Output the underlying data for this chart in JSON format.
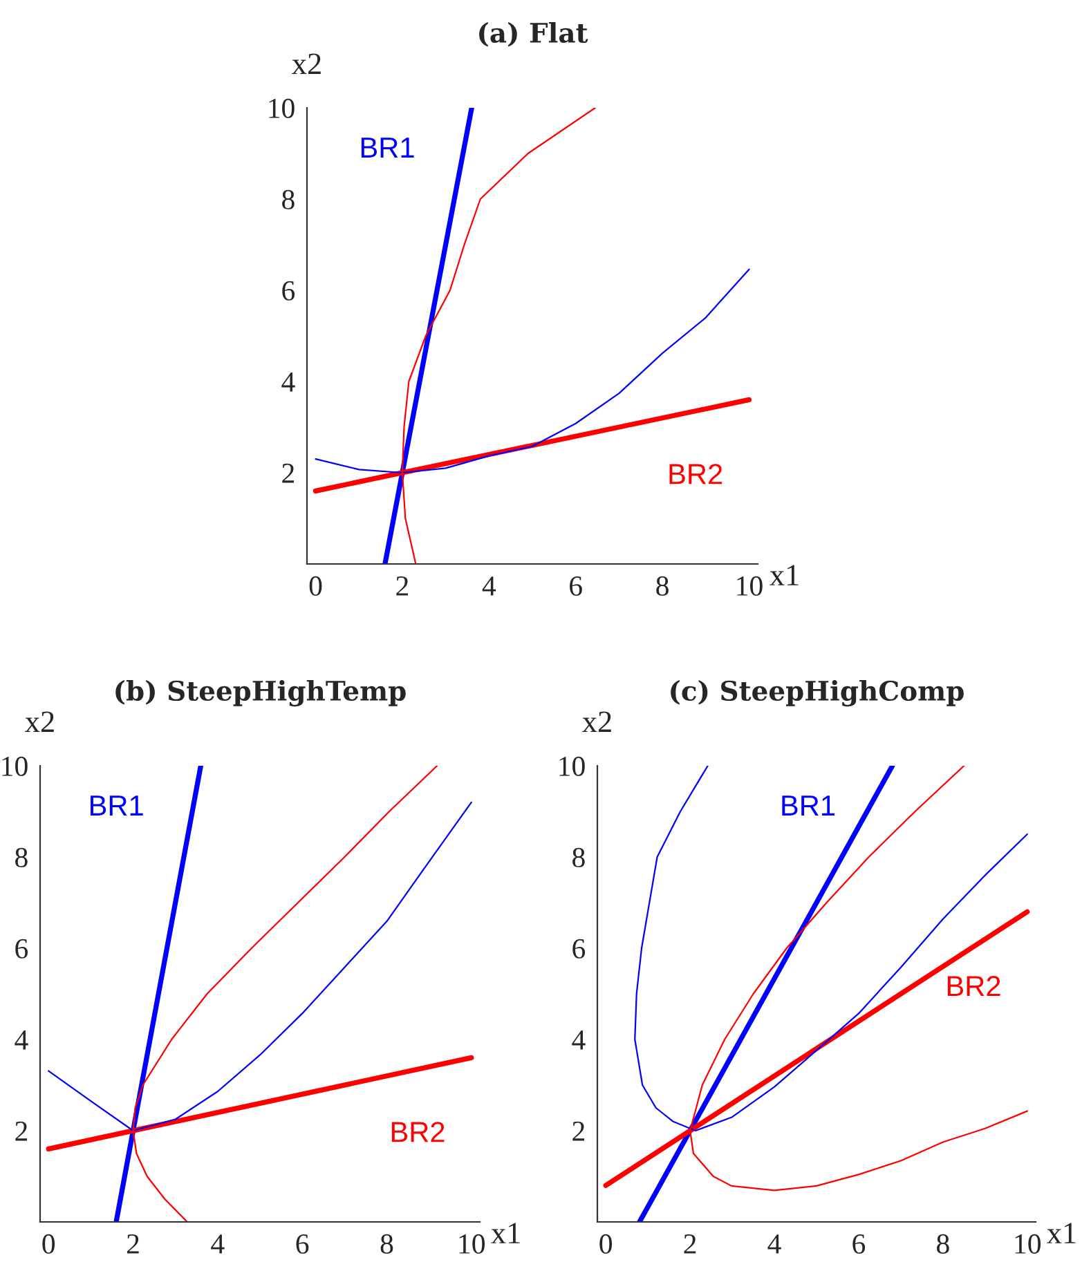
{
  "chart_data": [
    {
      "type": "line",
      "title": "(a) Flat",
      "xlabel": "x1",
      "ylabel": "x2",
      "xlim": [
        -0.2,
        10.2
      ],
      "ylim": [
        0,
        10
      ],
      "xticks": [
        0,
        2,
        4,
        6,
        8,
        10
      ],
      "yticks": [
        2,
        4,
        6,
        8,
        10
      ],
      "series": [
        {
          "name": "BR1",
          "color": "#0000ff",
          "x": [
            1.6,
            3.6
          ],
          "values": [
            0,
            10
          ]
        },
        {
          "name": "BR2",
          "color": "#ff0000",
          "x": [
            0,
            10
          ],
          "values": [
            1.6,
            3.6
          ]
        },
        {
          "color": "#0000ff",
          "x": [
            0,
            1,
            2,
            3,
            4,
            5,
            6,
            7,
            8,
            9,
            10
          ],
          "values": [
            2.3,
            2.07,
            2.0,
            2.1,
            2.37,
            2.58,
            3.08,
            3.74,
            4.62,
            5.4,
            6.46
          ]
        },
        {
          "color": "#ff0000",
          "x": [
            2.31,
            2.07,
            2.0,
            2.04,
            2.15,
            2.54,
            3.1,
            3.43,
            3.8,
            4.9,
            6.45
          ],
          "values": [
            0,
            1,
            2,
            3,
            4,
            5,
            6,
            7,
            8,
            9,
            10
          ]
        }
      ]
    },
    {
      "type": "line",
      "title": "(b) SteepHighTemp",
      "xlabel": "x1",
      "ylabel": "x2",
      "xlim": [
        -0.2,
        10.2
      ],
      "ylim": [
        0,
        10
      ],
      "xticks": [
        0,
        2,
        4,
        6,
        8,
        10
      ],
      "yticks": [
        2,
        4,
        6,
        8,
        10
      ],
      "series": [
        {
          "name": "BR1",
          "color": "#0000ff",
          "x": [
            1.6,
            3.6
          ],
          "values": [
            0,
            10
          ]
        },
        {
          "name": "BR2",
          "color": "#ff0000",
          "x": [
            0,
            10
          ],
          "values": [
            1.6,
            3.6
          ]
        },
        {
          "color": "#0000ff",
          "x": [
            0,
            1,
            2,
            3,
            4,
            5,
            6,
            7,
            8,
            9,
            10
          ],
          "values": [
            3.31,
            2.65,
            2.0,
            2.25,
            2.86,
            3.66,
            4.57,
            5.58,
            6.59,
            7.9,
            9.2
          ]
        },
        {
          "color": "#ff0000",
          "x": [
            3.28,
            2.75,
            2.33,
            2.08,
            2.0,
            2.05,
            2.23,
            2.91,
            3.75,
            4.8,
            5.9,
            7.0,
            8.06,
            9.19
          ],
          "values": [
            0,
            0.5,
            1,
            1.5,
            2,
            2.5,
            3,
            4,
            5,
            6,
            7,
            8,
            9,
            10
          ]
        }
      ]
    },
    {
      "type": "line",
      "title": "(c) SteepHighComp",
      "xlabel": "x1",
      "ylabel": "x2",
      "xlim": [
        -0.2,
        10.2
      ],
      "ylim": [
        0,
        10
      ],
      "xticks": [
        0,
        2,
        4,
        6,
        8,
        10
      ],
      "yticks": [
        2,
        4,
        6,
        8,
        10
      ],
      "series": [
        {
          "name": "BR1",
          "color": "#0000ff",
          "x": [
            0.8,
            6.8
          ],
          "values": [
            0,
            10
          ]
        },
        {
          "name": "BR2",
          "color": "#ff0000",
          "x": [
            0,
            10
          ],
          "values": [
            0.8,
            6.8
          ]
        },
        {
          "color": "#0000ff",
          "x": [
            2.42,
            1.77,
            1.22,
            0.85,
            0.73,
            0.69,
            0.87,
            1.19,
            1.6,
            2.13,
            3,
            4,
            5,
            6,
            7,
            8,
            9,
            10
          ],
          "values": [
            10,
            9,
            8,
            6,
            5,
            4,
            3,
            2.5,
            2.2,
            2.0,
            2.3,
            2.96,
            3.76,
            4.57,
            5.58,
            6.64,
            7.6,
            8.5
          ]
        },
        {
          "color": "#ff0000",
          "x": [
            8.5,
            7.34,
            6.24,
            5.24,
            4.29,
            3.5,
            2.82,
            2.29,
            2.0,
            2.08,
            2.55,
            2.98,
            4,
            5,
            6,
            7,
            8,
            9,
            10
          ],
          "values": [
            10,
            9,
            8,
            7,
            6,
            5,
            4,
            3,
            2,
            1.5,
            1,
            0.79,
            0.69,
            0.79,
            1.04,
            1.34,
            1.75,
            2.05,
            2.43
          ]
        }
      ]
    }
  ]
}
